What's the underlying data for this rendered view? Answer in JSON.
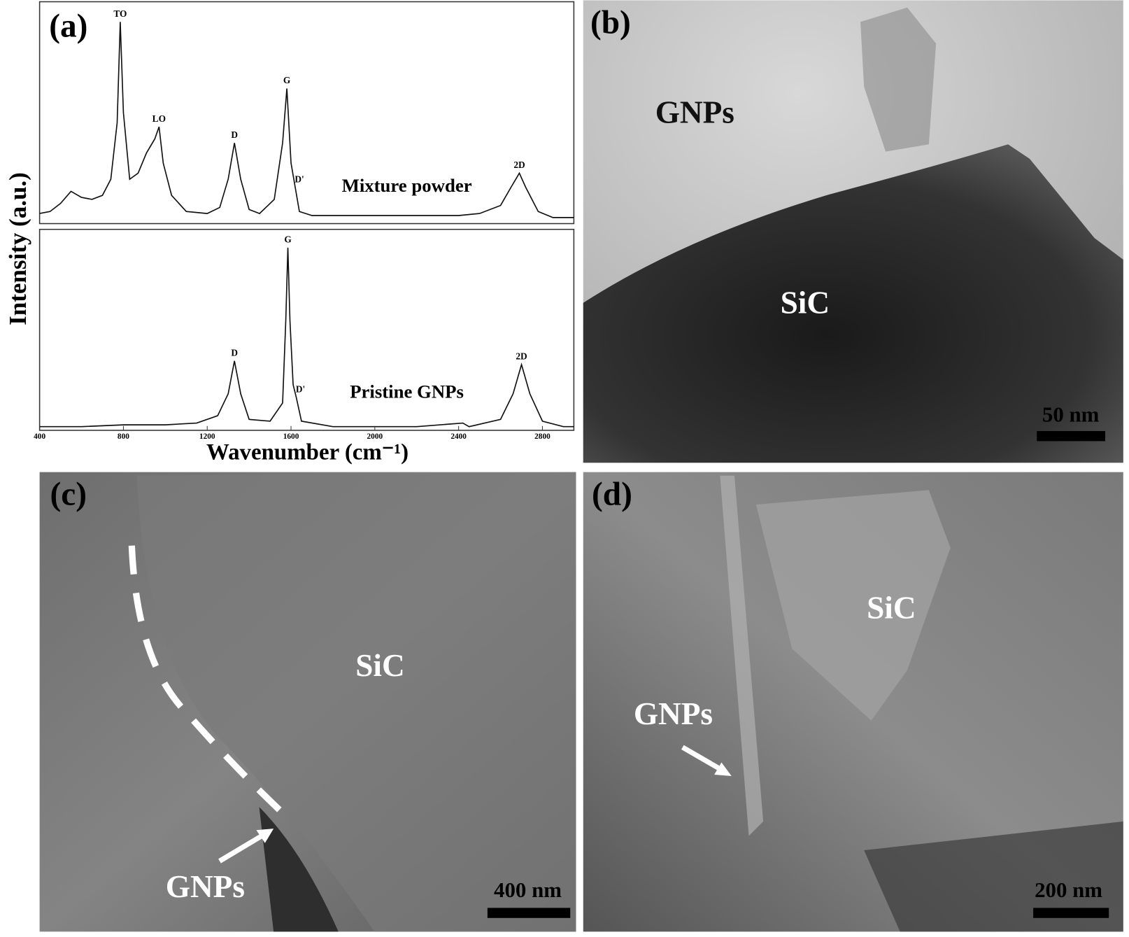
{
  "chart_data": [
    {
      "type": "line",
      "panel_label": "(a)",
      "label": "Mixture powder",
      "ylabel": "Intensity (a.u.)",
      "color": "#111111",
      "x": [
        400,
        450,
        500,
        550,
        600,
        650,
        700,
        740,
        770,
        785,
        800,
        830,
        870,
        910,
        950,
        970,
        990,
        1030,
        1100,
        1200,
        1260,
        1300,
        1330,
        1360,
        1400,
        1450,
        1520,
        1560,
        1580,
        1600,
        1620,
        1640,
        1700,
        1800,
        2000,
        2200,
        2400,
        2500,
        2600,
        2650,
        2690,
        2720,
        2780,
        2850,
        2950
      ],
      "values": [
        5,
        6,
        10,
        16,
        13,
        12,
        14,
        22,
        50,
        100,
        55,
        22,
        25,
        35,
        42,
        48,
        30,
        14,
        6,
        5,
        8,
        22,
        40,
        22,
        7,
        5,
        12,
        40,
        67,
        30,
        18,
        6,
        4,
        4,
        4,
        4,
        4,
        5,
        9,
        18,
        25,
        18,
        6,
        3,
        3
      ],
      "xlim": [
        400,
        2950
      ],
      "ylim": [
        0,
        110
      ],
      "annotations": [
        {
          "text": "TO",
          "x": 785,
          "y": 100
        },
        {
          "text": "LO",
          "x": 970,
          "y": 48
        },
        {
          "text": "D",
          "x": 1330,
          "y": 40
        },
        {
          "text": "G",
          "x": 1580,
          "y": 67
        },
        {
          "text": "D'",
          "x": 1640,
          "y": 18
        },
        {
          "text": "2D",
          "x": 2690,
          "y": 25
        }
      ]
    },
    {
      "type": "line",
      "label": "Pristine GNPs",
      "xlabel": "Wavenumber (cm⁻¹)",
      "color": "#111111",
      "x": [
        400,
        600,
        800,
        1000,
        1150,
        1250,
        1300,
        1330,
        1360,
        1400,
        1500,
        1560,
        1575,
        1585,
        1595,
        1610,
        1625,
        1650,
        1800,
        2200,
        2420,
        2450,
        2600,
        2660,
        2700,
        2740,
        2800,
        2900,
        2950
      ],
      "values": [
        2,
        2,
        3,
        3,
        4,
        8,
        20,
        38,
        20,
        6,
        5,
        15,
        60,
        100,
        60,
        25,
        18,
        5,
        2,
        2,
        4,
        2,
        6,
        20,
        36,
        20,
        5,
        2,
        2
      ],
      "xlim": [
        400,
        2950
      ],
      "ylim": [
        0,
        110
      ],
      "xticks": [
        400,
        800,
        1200,
        1600,
        2000,
        2400,
        2800
      ],
      "annotations": [
        {
          "text": "D",
          "x": 1330,
          "y": 38
        },
        {
          "text": "G",
          "x": 1585,
          "y": 100
        },
        {
          "text": "D'",
          "x": 1645,
          "y": 18
        },
        {
          "text": "2D",
          "x": 2700,
          "y": 36
        }
      ]
    }
  ],
  "panels": [
    {
      "label": "(b)",
      "texts": [
        "GNPs",
        "SiC"
      ],
      "scale_bar": "50 nm"
    },
    {
      "label": "(c)",
      "texts": [
        "SiC",
        "GNPs"
      ],
      "scale_bar": "400 nm"
    },
    {
      "label": "(d)",
      "texts": [
        "SiC",
        "GNPs"
      ],
      "scale_bar": "200 nm"
    }
  ]
}
